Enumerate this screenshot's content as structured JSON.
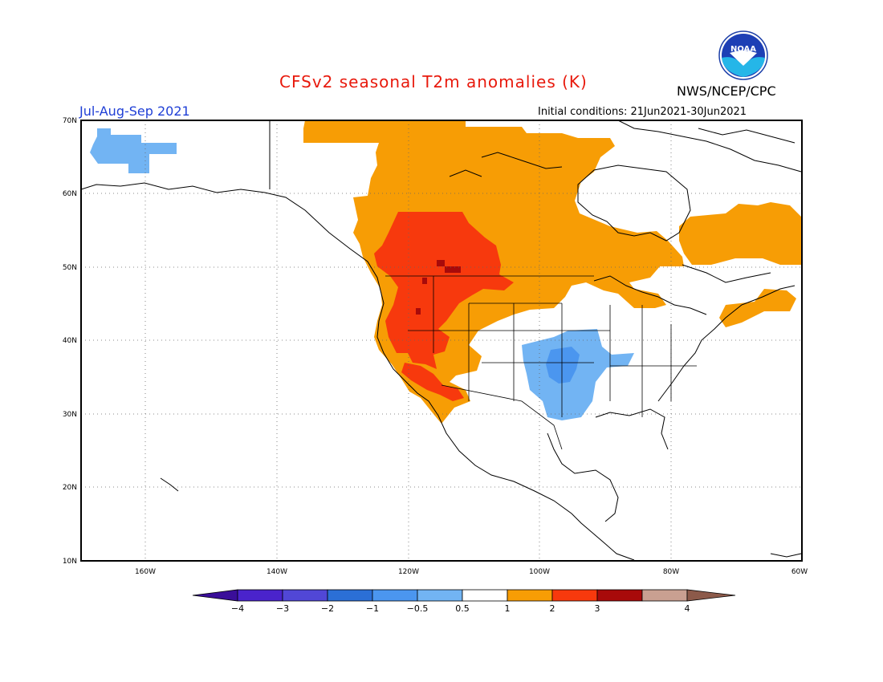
{
  "title": "CFSv2 seasonal T2m anomalies (K)",
  "period": "Jul-Aug-Sep 2021",
  "initial_conditions": "Initial conditions: 21Jun2021-30Jun2021",
  "agency": "NWS/NCEP/CPC",
  "logo_text": "NOAA",
  "colors": {
    "title": "#e8190c",
    "period": "#1f3fd6",
    "orange": "#f79d05",
    "red": "#f7390d",
    "darkred": "#a80a0a",
    "lightblue": "#72b4f3",
    "blue": "#4b96ef"
  },
  "map": {
    "lat_labels": [
      "70N",
      "60N",
      "50N",
      "40N",
      "30N",
      "20N",
      "10N"
    ],
    "lon_labels": [
      "160W",
      "140W",
      "120W",
      "100W",
      "80W",
      "60W"
    ]
  },
  "colorbar": {
    "labels": [
      "-4",
      "-3",
      "-2",
      "-1",
      "-0.5",
      "0.5",
      "1",
      "2",
      "3",
      "4"
    ],
    "colors": [
      "#4a23cc",
      "#5147d6",
      "#2b6fd6",
      "#4b96ef",
      "#72b4f3",
      "#ffffff",
      "#f79d05",
      "#f7390d",
      "#a80a0a",
      "#c9a091"
    ],
    "low_color": "#3a0e99",
    "high_color": "#8c5a4a"
  }
}
